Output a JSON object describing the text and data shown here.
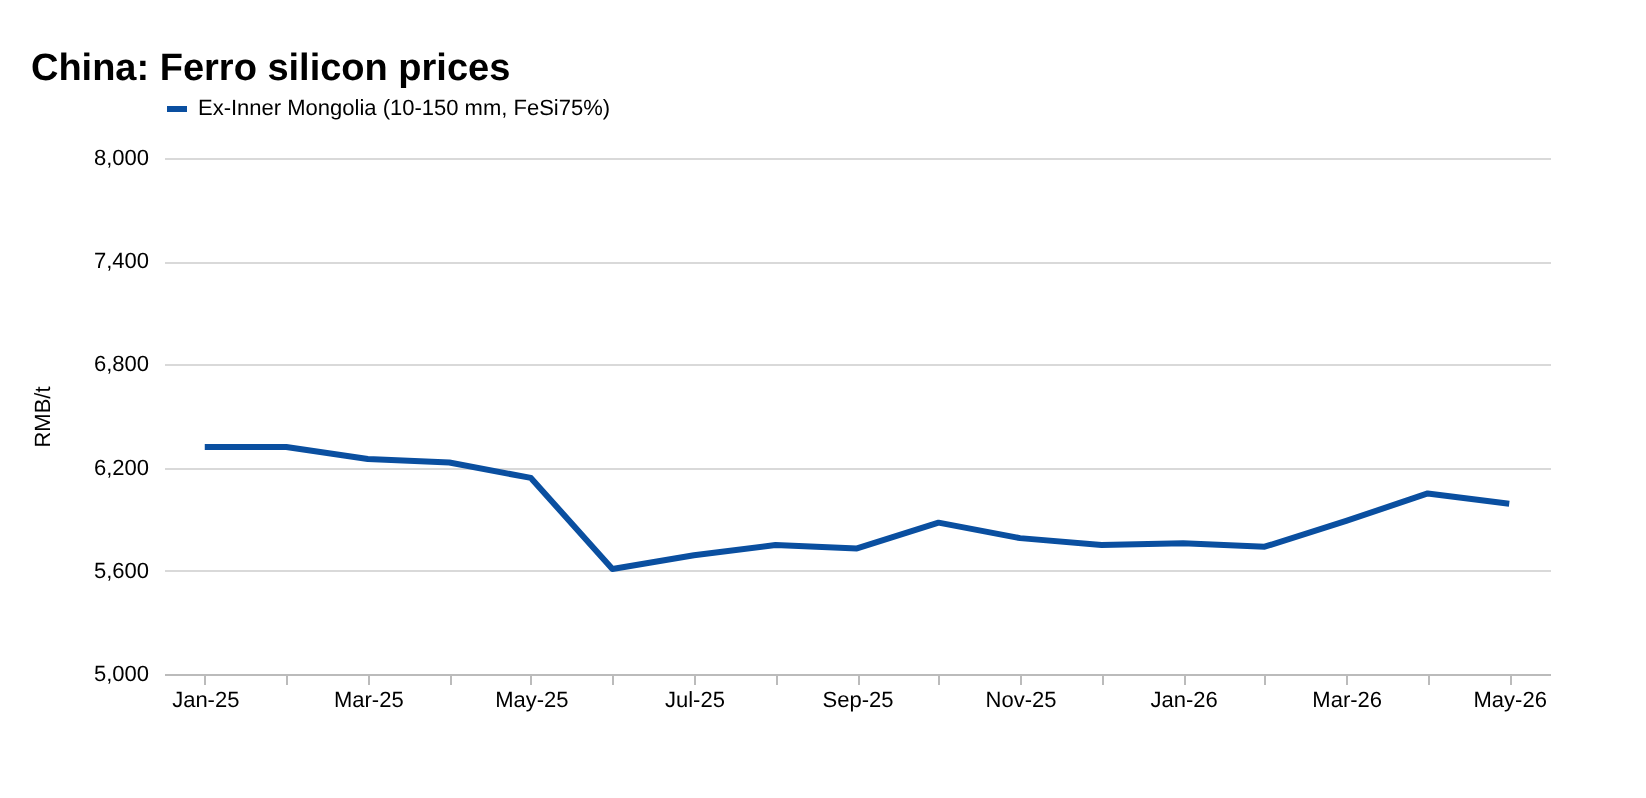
{
  "chart_data": {
    "type": "line",
    "title": "China: Ferro silicon prices",
    "ylabel": "RMB/t",
    "categories": [
      "Jan-25",
      null,
      "Mar-25",
      null,
      "May-25",
      null,
      "Jul-25",
      null,
      "Sep-25",
      null,
      "Nov-25",
      null,
      "Jan-26",
      null,
      "Mar-26",
      null,
      "May-26"
    ],
    "series": [
      {
        "name": "Ex-Inner Mongolia (10-150 mm, FeSi75%)",
        "color": "#0a4fa0",
        "values": [
          6320,
          6320,
          6250,
          6230,
          6140,
          5610,
          5690,
          5750,
          5730,
          5880,
          5790,
          5750,
          5760,
          5740,
          5890,
          6050,
          5990
        ]
      }
    ],
    "ylim": [
      5000,
      8000
    ],
    "yticks": [
      {
        "value": 5000,
        "label": "5,000"
      },
      {
        "value": 5600,
        "label": "5,600"
      },
      {
        "value": 6200,
        "label": "6,200"
      },
      {
        "value": 6800,
        "label": "6,800"
      },
      {
        "value": 7400,
        "label": "7,400"
      },
      {
        "value": 8000,
        "label": "8,000"
      }
    ],
    "grid": "y",
    "legend": "top left",
    "line_style": "solid",
    "marker": "none"
  }
}
